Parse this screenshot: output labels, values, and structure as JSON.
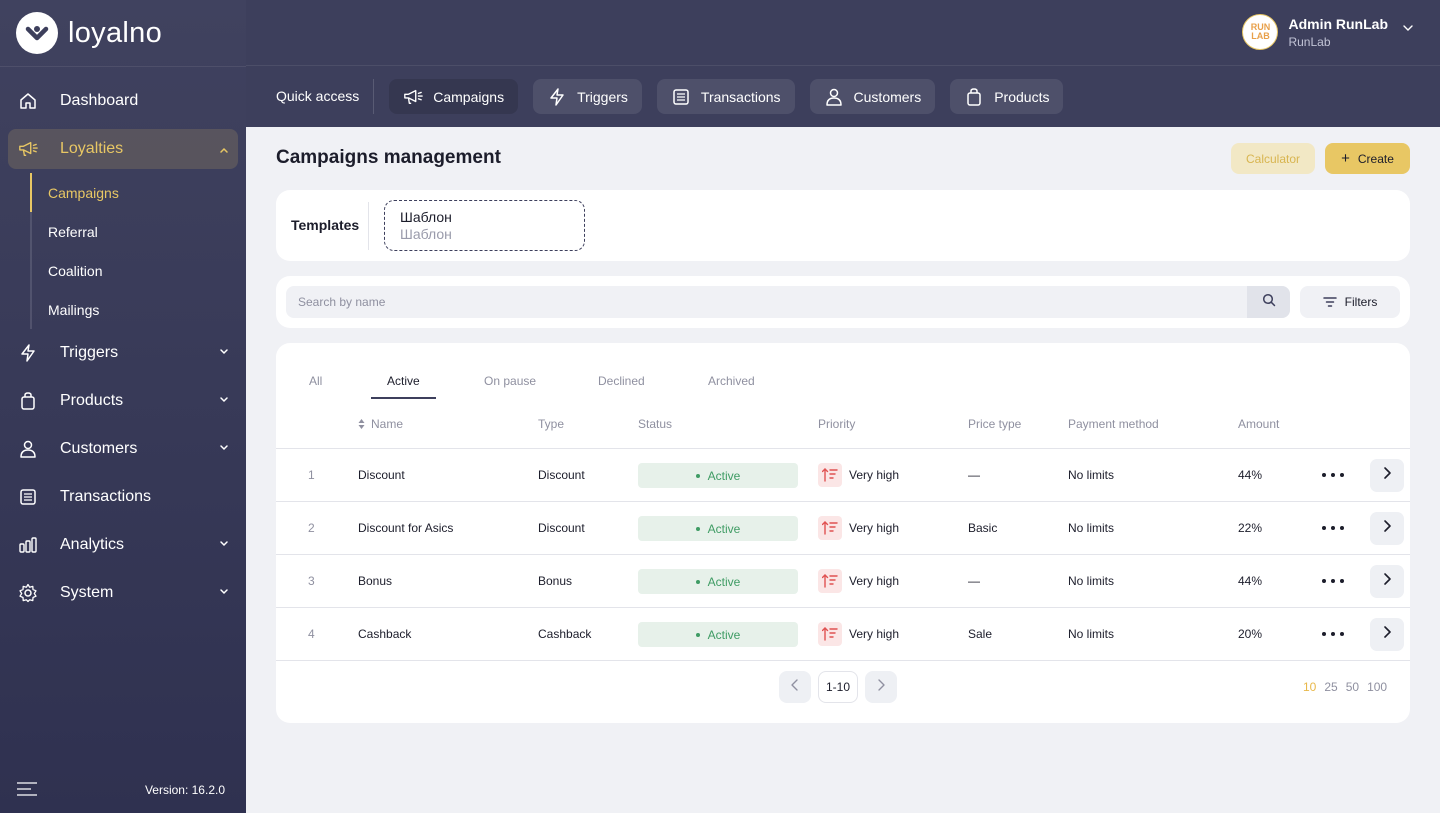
{
  "app": {
    "brand": "loyalno",
    "version": "Version: 16.2.0"
  },
  "user": {
    "name": "Admin RunLab",
    "org": "RunLab",
    "avatar_line1": "RUN",
    "avatar_line2": "LAB"
  },
  "sidebar": {
    "items": [
      {
        "label": "Dashboard",
        "icon": "home-icon"
      },
      {
        "label": "Loyalties",
        "icon": "megaphone-icon",
        "expanded": true
      },
      {
        "label": "Triggers",
        "icon": "lightning-icon"
      },
      {
        "label": "Products",
        "icon": "bag-icon"
      },
      {
        "label": "Customers",
        "icon": "user-icon"
      },
      {
        "label": "Transactions",
        "icon": "list-icon"
      },
      {
        "label": "Analytics",
        "icon": "bars-icon"
      },
      {
        "label": "System",
        "icon": "gear-icon"
      }
    ],
    "loyalties_sub": [
      "Campaigns",
      "Referral",
      "Coalition",
      "Mailings"
    ]
  },
  "quick_access": {
    "label": "Quick access",
    "buttons": [
      "Campaigns",
      "Triggers",
      "Transactions",
      "Customers",
      "Products"
    ]
  },
  "page": {
    "title": "Campaigns management",
    "calculator_label": "Calculator",
    "create_label": "Create"
  },
  "templates": {
    "label": "Templates",
    "item_title": "Шаблон",
    "item_sub": "Шаблон"
  },
  "search": {
    "placeholder": "Search by name",
    "filters_label": "Filters"
  },
  "tabs": [
    "All",
    "Active",
    "On pause",
    "Declined",
    "Archived"
  ],
  "active_tab": "Active",
  "table": {
    "columns": [
      "Name",
      "Type",
      "Status",
      "Priority",
      "Price type",
      "Payment method",
      "Amount"
    ],
    "rows": [
      {
        "num": "1",
        "name": "Discount",
        "type": "Discount",
        "status": "Active",
        "priority": "Very high",
        "price_type": "—",
        "payment": "No limits",
        "amount": "44%"
      },
      {
        "num": "2",
        "name": "Discount for Asics",
        "type": "Discount",
        "status": "Active",
        "priority": "Very high",
        "price_type": "Basic",
        "payment": "No limits",
        "amount": "22%"
      },
      {
        "num": "3",
        "name": "Bonus",
        "type": "Bonus",
        "status": "Active",
        "priority": "Very high",
        "price_type": "—",
        "payment": "No limits",
        "amount": "44%"
      },
      {
        "num": "4",
        "name": "Cashback",
        "type": "Cashback",
        "status": "Active",
        "priority": "Very high",
        "price_type": "Sale",
        "payment": "No limits",
        "amount": "20%"
      }
    ]
  },
  "pagination": {
    "current": "1-10",
    "sizes": [
      "10",
      "25",
      "50",
      "100"
    ],
    "selected_size": "10"
  },
  "colors": {
    "sidebar_bg": "#3a3c5a",
    "accent": "#e8c764",
    "status_green": "#3f9c64",
    "priority_red": "#e05252"
  }
}
